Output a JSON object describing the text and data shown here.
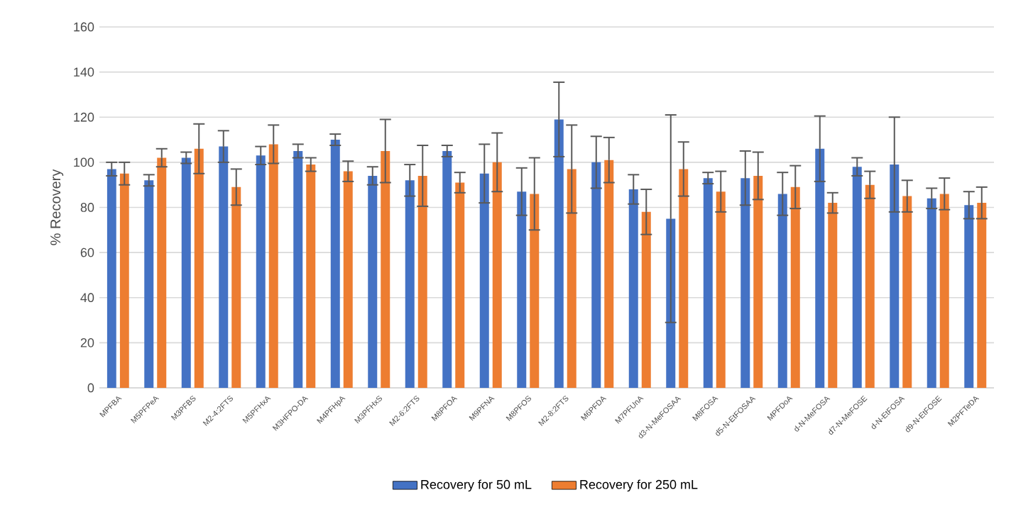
{
  "chart_data": {
    "type": "bar",
    "ylabel": "% Recovery",
    "categories": [
      "MPFBA",
      "M5PFPeA",
      "M3PFBS",
      "M2-4:2FTS",
      "M5PFHxA",
      "M3HFPO-DA",
      "M4PFHpA",
      "M3PFHxS",
      "M2-6:2FTS",
      "M8PFOA",
      "M9PFNA",
      "M8PFOS",
      "M2-8:2FTS",
      "M6PFDA",
      "M7PFUnA",
      "d3-N-MeFOSAA",
      "M8FOSA",
      "d5-N-EtFOSAA",
      "MPFDoA",
      "d-N-MeFOSA",
      "d7-N-MeFOSE",
      "d-N-EtFOSA",
      "d9-N-EtFOSE",
      "M2PFTeDA"
    ],
    "series": [
      {
        "name": "Recovery for 50 mL",
        "color": "#4472c4",
        "values": [
          97,
          92,
          102,
          107,
          103,
          105,
          110,
          94,
          92,
          105,
          95,
          87,
          119,
          100,
          88,
          75,
          93,
          93,
          86,
          106,
          98,
          99,
          84,
          81
        ],
        "errors": [
          3,
          2.5,
          2.5,
          7,
          4,
          3,
          2.5,
          4,
          7,
          2.5,
          13,
          10.5,
          16.5,
          11.5,
          6.5,
          46,
          2.5,
          12,
          9.5,
          14.5,
          4,
          21,
          4.5,
          6
        ]
      },
      {
        "name": "Recovery for 250 mL",
        "color": "#ed7d31",
        "values": [
          95,
          102,
          106,
          89,
          108,
          99,
          96,
          105,
          94,
          91,
          100,
          86,
          97,
          101,
          78,
          97,
          87,
          94,
          89,
          82,
          90,
          85,
          86,
          82
        ],
        "errors": [
          5,
          4,
          11,
          8,
          8.5,
          3,
          4.5,
          14,
          13.5,
          4.5,
          13,
          16,
          19.5,
          10,
          10,
          12,
          9,
          10.5,
          9.5,
          4.5,
          6,
          7,
          7,
          7
        ]
      }
    ],
    "ylim": [
      0,
      160
    ],
    "yticks": [
      0,
      20,
      40,
      60,
      80,
      100,
      120,
      140,
      160
    ],
    "grid": "y",
    "legend": "bottom"
  }
}
